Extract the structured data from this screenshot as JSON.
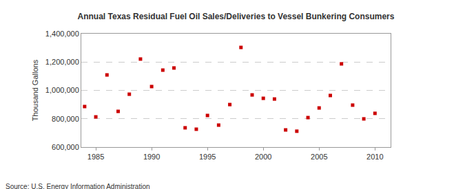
{
  "chart_data": {
    "type": "scatter",
    "title": "Annual Texas Residual Fuel Oil Sales/Deliveries to Vessel Bunkering Consumers",
    "y_label": "Thousand Gallons",
    "source": "Source: U.S. Energy Information Administration",
    "x": [
      1984,
      1985,
      1986,
      1987,
      1988,
      1989,
      1990,
      1991,
      1992,
      1993,
      1994,
      1995,
      1996,
      1997,
      1998,
      1999,
      2000,
      2001,
      2002,
      2003,
      2004,
      2005,
      2006,
      2007,
      2008,
      2009,
      2010
    ],
    "values": [
      886000,
      813000,
      1109000,
      852000,
      973000,
      1221000,
      1027000,
      1143000,
      1158000,
      736000,
      726000,
      823000,
      755000,
      900000,
      1303000,
      968000,
      944000,
      939000,
      721000,
      712000,
      808000,
      876000,
      964000,
      1187000,
      896000,
      799000,
      838000
    ],
    "color": "#cc0000",
    "marker": "square",
    "xlim": [
      1983.7,
      2011.4
    ],
    "xticks": [
      1985,
      1990,
      1995,
      2000,
      2005,
      2010
    ],
    "ylim": [
      600000,
      1400000
    ],
    "yticks": [
      {
        "value": 600000,
        "label": "600,000"
      },
      {
        "value": 800000,
        "label": "800,000"
      },
      {
        "value": 1000000,
        "label": "1,000,000"
      },
      {
        "value": 1200000,
        "label": "1,200,000"
      },
      {
        "value": 1400000,
        "label": "1,400,000"
      }
    ],
    "grid": true
  }
}
